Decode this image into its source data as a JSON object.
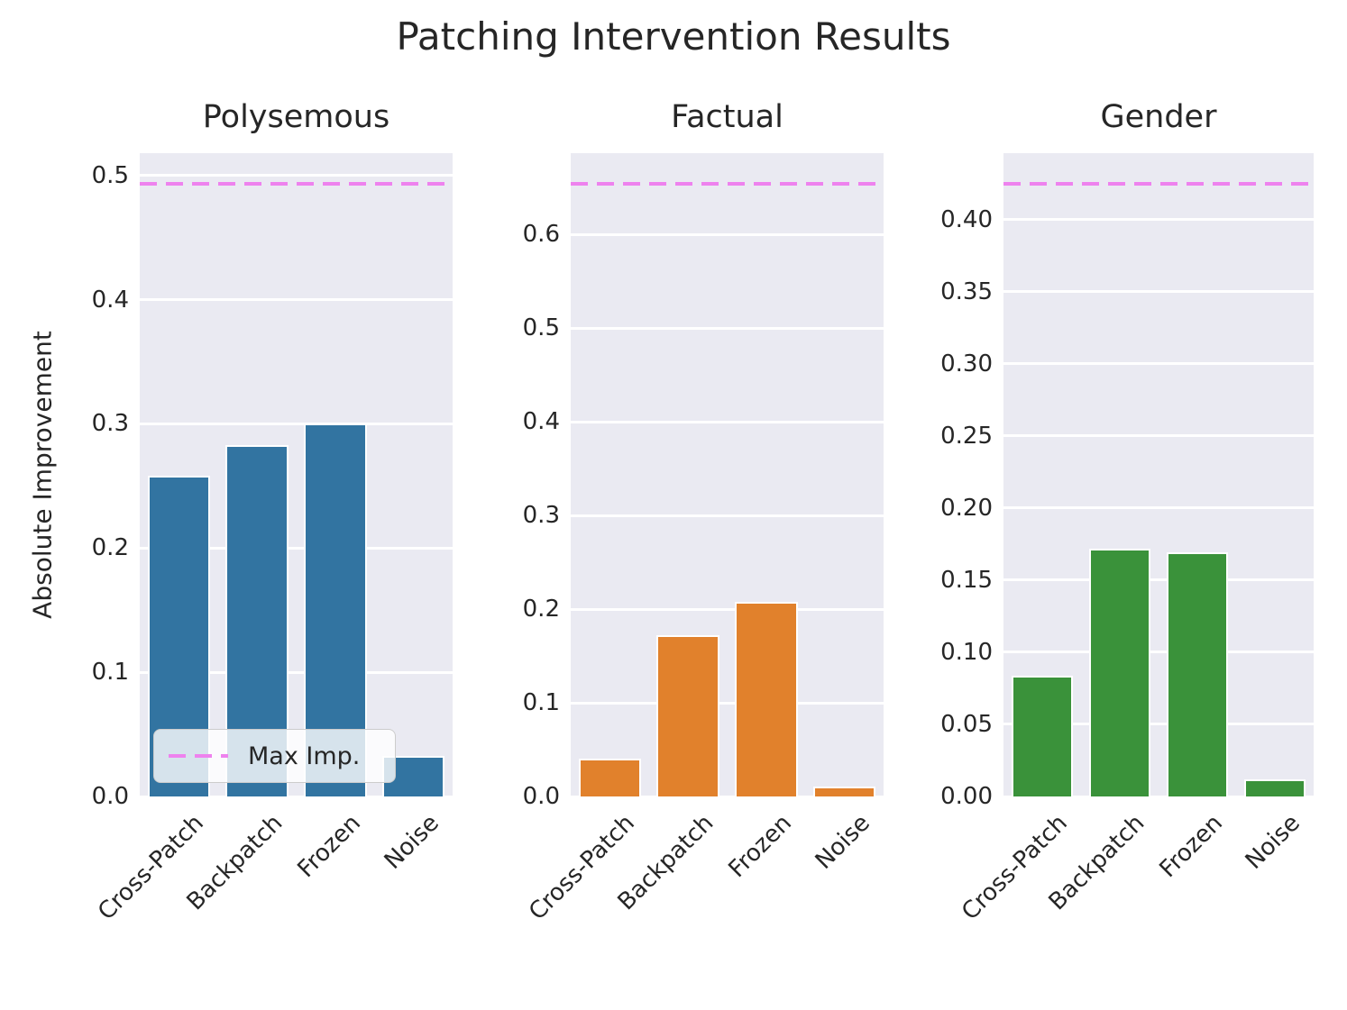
{
  "figure": {
    "title": "Patching Intervention Results",
    "ylabel": "Absolute Improvement",
    "legend": {
      "label": "Max Imp.",
      "position": "lower left"
    }
  },
  "colors": {
    "axes_background": "#EAEAF2",
    "grid": "#FFFFFF",
    "text": "#262626",
    "max_line": "#EE82EE"
  },
  "chart_data": [
    {
      "type": "bar",
      "title": "Polysemous",
      "categories": [
        "Cross-Patch",
        "Backpatch",
        "Frozen",
        "Noise"
      ],
      "values": [
        0.258,
        0.283,
        0.3,
        0.033
      ],
      "max_improvement_line": 0.493,
      "bar_color": "#3274A1",
      "line_color": "#EE82EE",
      "ylim": [
        0,
        0.518
      ],
      "yticks": [
        0.0,
        0.1,
        0.2,
        0.3,
        0.4,
        0.5
      ],
      "ytick_labels": [
        "0.0",
        "0.1",
        "0.2",
        "0.3",
        "0.4",
        "0.5"
      ],
      "grid": true,
      "legend_position": "lower left"
    },
    {
      "type": "bar",
      "title": "Factual",
      "categories": [
        "Cross-Patch",
        "Backpatch",
        "Frozen",
        "Noise"
      ],
      "values": [
        0.04,
        0.172,
        0.208,
        0.011
      ],
      "max_improvement_line": 0.654,
      "bar_color": "#E1812C",
      "line_color": "#EE82EE",
      "ylim": [
        0,
        0.687
      ],
      "yticks": [
        0.0,
        0.1,
        0.2,
        0.3,
        0.4,
        0.5,
        0.6
      ],
      "ytick_labels": [
        "0.0",
        "0.1",
        "0.2",
        "0.3",
        "0.4",
        "0.5",
        "0.6"
      ],
      "grid": true
    },
    {
      "type": "bar",
      "title": "Gender",
      "categories": [
        "Cross-Patch",
        "Backpatch",
        "Frozen",
        "Noise"
      ],
      "values": [
        0.084,
        0.172,
        0.169,
        0.012
      ],
      "max_improvement_line": 0.425,
      "bar_color": "#3A923A",
      "line_color": "#EE82EE",
      "ylim": [
        0,
        0.446
      ],
      "yticks": [
        0.0,
        0.05,
        0.1,
        0.15,
        0.2,
        0.25,
        0.3,
        0.35,
        0.4
      ],
      "ytick_labels": [
        "0.00",
        "0.05",
        "0.10",
        "0.15",
        "0.20",
        "0.25",
        "0.30",
        "0.35",
        "0.40"
      ],
      "grid": true
    }
  ]
}
